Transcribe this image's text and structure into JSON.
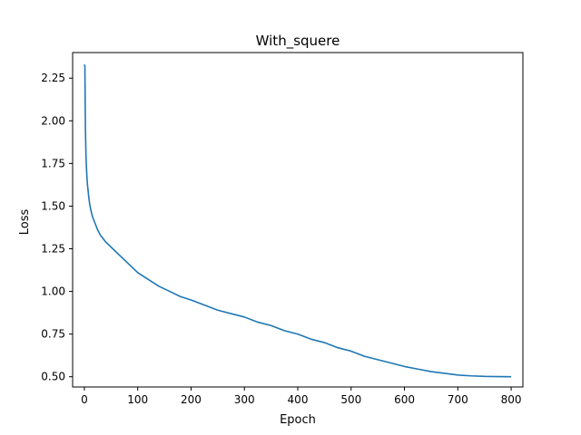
{
  "chart_data": {
    "type": "line",
    "title": "With_squere",
    "xlabel": "Epoch",
    "ylabel": "Loss",
    "xlim": [
      -22,
      822
    ],
    "ylim": [
      0.44,
      2.4
    ],
    "xticks": [
      0,
      100,
      200,
      300,
      400,
      500,
      600,
      700,
      800
    ],
    "xtick_labels": [
      "0",
      "100",
      "200",
      "300",
      "400",
      "500",
      "600",
      "700",
      "800"
    ],
    "yticks": [
      0.5,
      0.75,
      1.0,
      1.25,
      1.5,
      1.75,
      2.0,
      2.25
    ],
    "ytick_labels": [
      "0.50",
      "0.75",
      "1.00",
      "1.25",
      "1.50",
      "1.75",
      "2.00",
      "2.25"
    ],
    "grid": false,
    "legend": null,
    "series": [
      {
        "color": "#1f77b4",
        "x": [
          0,
          1,
          2,
          3,
          4,
          5,
          6,
          8,
          10,
          12,
          15,
          20,
          25,
          30,
          35,
          40,
          50,
          60,
          70,
          80,
          90,
          100,
          120,
          140,
          160,
          180,
          200,
          225,
          250,
          275,
          300,
          325,
          350,
          375,
          400,
          425,
          450,
          475,
          500,
          525,
          550,
          575,
          600,
          625,
          650,
          675,
          700,
          725,
          750,
          775,
          800
        ],
        "y": [
          2.33,
          2.32,
          1.95,
          1.8,
          1.72,
          1.66,
          1.62,
          1.56,
          1.51,
          1.48,
          1.44,
          1.4,
          1.36,
          1.33,
          1.31,
          1.29,
          1.26,
          1.23,
          1.2,
          1.17,
          1.14,
          1.11,
          1.07,
          1.03,
          1.0,
          0.97,
          0.95,
          0.92,
          0.89,
          0.87,
          0.85,
          0.82,
          0.8,
          0.77,
          0.75,
          0.72,
          0.7,
          0.67,
          0.65,
          0.62,
          0.6,
          0.58,
          0.56,
          0.545,
          0.53,
          0.52,
          0.51,
          0.505,
          0.502,
          0.501,
          0.5
        ]
      }
    ]
  }
}
